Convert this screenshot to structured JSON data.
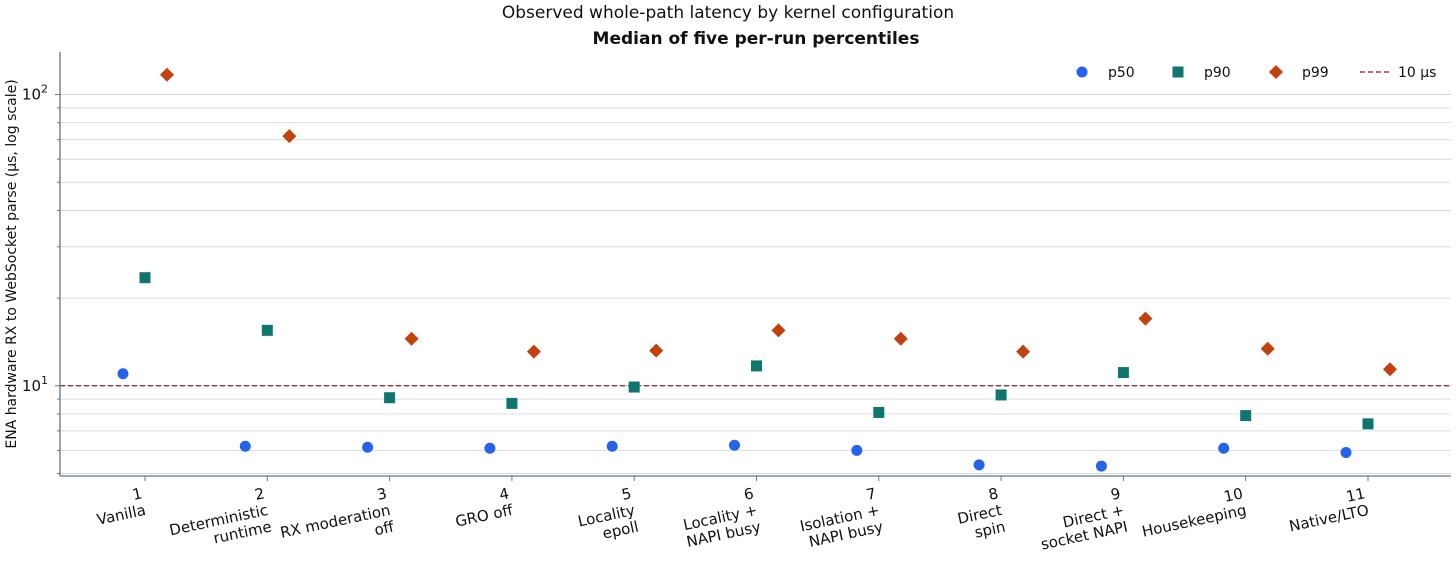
{
  "chart_data": {
    "type": "scatter",
    "title": "Observed whole-path latency by kernel configuration",
    "subtitle": "Median of five per-run percentiles",
    "ylabel": "ENA hardware RX to WebSocket parse (µs, log scale)",
    "xlabel": "",
    "y_scale": "log",
    "ylim": [
      4.9,
      140
    ],
    "grid": "horizontal",
    "legend_position": "top-right",
    "categories": [
      [
        "1",
        "Vanilla"
      ],
      [
        "2",
        "Deterministic",
        "runtime"
      ],
      [
        "3",
        "RX moderation",
        "off"
      ],
      [
        "4",
        "GRO off"
      ],
      [
        "5",
        "Locality",
        "epoll"
      ],
      [
        "6",
        "Locality +",
        "NAPI busy"
      ],
      [
        "7",
        "Isolation +",
        "NAPI busy"
      ],
      [
        "8",
        "Direct",
        "spin"
      ],
      [
        "9",
        "Direct +",
        "socket NAPI"
      ],
      [
        "10",
        "Housekeeping"
      ],
      [
        "11",
        "Native/LTO"
      ]
    ],
    "series": [
      {
        "name": "p50",
        "marker": "circle",
        "color": "#2563eb",
        "values": [
          11.0,
          6.2,
          6.15,
          6.1,
          6.2,
          6.25,
          6.0,
          5.35,
          5.3,
          6.1,
          5.9
        ]
      },
      {
        "name": "p90",
        "marker": "square",
        "color": "#0f766e",
        "values": [
          23.5,
          15.5,
          9.1,
          8.7,
          9.9,
          11.7,
          8.1,
          9.3,
          11.1,
          7.9,
          7.4
        ]
      },
      {
        "name": "p99",
        "marker": "diamond",
        "color": "#c2410c",
        "values": [
          117,
          72,
          14.5,
          13.1,
          13.2,
          15.5,
          14.5,
          13.1,
          17.0,
          13.4,
          11.4
        ]
      }
    ],
    "reference_line": {
      "name": "10 µs",
      "value": 10,
      "color": "#991b1b"
    },
    "y_ticks": [
      {
        "value": 10,
        "base": "10",
        "exp": "1"
      },
      {
        "value": 100,
        "base": "10",
        "exp": "2"
      }
    ],
    "axis_color": "#64748b",
    "grid_color": "#cbd5e1"
  }
}
